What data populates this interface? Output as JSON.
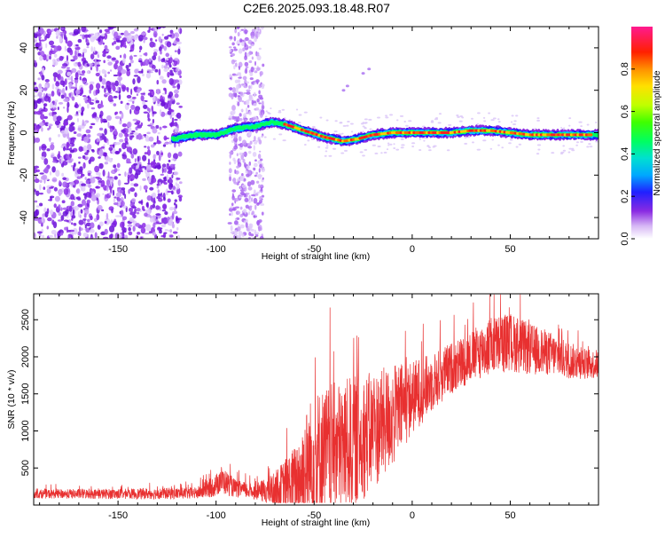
{
  "title": "C2E6.2025.093.18.48.R07",
  "chart_data": [
    {
      "type": "heatmap",
      "name": "spectrogram",
      "xlabel": "Height of straight line (km)",
      "ylabel": "Frequency (Hz)",
      "xlim": [
        -193,
        95
      ],
      "ylim": [
        -50,
        50
      ],
      "xticks": [
        -150,
        -100,
        -50,
        0,
        50
      ],
      "xtick_labels": [
        "-150",
        "-100",
        "-50",
        "0",
        "50"
      ],
      "yticks": [
        -40,
        -20,
        0,
        20,
        40
      ],
      "ytick_labels": [
        "-40",
        "-20",
        "0",
        "20",
        "40"
      ],
      "ridge": {
        "description_values": "dominant frequency (Hz) along height (km)",
        "x": [
          -122,
          -110,
          -100,
          -90,
          -80,
          -72,
          -65,
          -55,
          -45,
          -35,
          -28,
          -20,
          -10,
          0,
          10,
          20,
          30,
          40,
          50,
          60,
          70,
          80,
          90,
          95
        ],
        "y": [
          -3,
          -1,
          -1,
          2,
          3,
          5,
          4,
          1,
          -2,
          -4,
          -3,
          -1,
          0,
          0,
          0,
          0,
          1,
          1,
          0,
          -1,
          -1,
          -1,
          -1,
          -1
        ]
      },
      "colorbar": {
        "label": "Normalized spectral amplitude",
        "range": [
          0.0,
          1.0
        ],
        "ticks": [
          0.0,
          0.2,
          0.4,
          0.6,
          0.8
        ],
        "tick_labels": [
          "0.0",
          "0.2",
          "0.4",
          "0.6",
          "0.8"
        ]
      }
    },
    {
      "type": "line",
      "name": "snr",
      "xlabel": "Height of straight line (km)",
      "ylabel": "SNR (10 * v/v)",
      "xlim": [
        -193,
        95
      ],
      "ylim": [
        0,
        2850
      ],
      "xticks": [
        -150,
        -100,
        -50,
        0,
        50
      ],
      "xtick_labels": [
        "-150",
        "-100",
        "-50",
        "0",
        "50"
      ],
      "yticks": [
        500,
        1000,
        1500,
        2000,
        2500
      ],
      "ytick_labels": [
        "500",
        "1000",
        "1500",
        "2000",
        "2500"
      ],
      "color": "#e83030",
      "envelope": {
        "x": [
          -193,
          -150,
          -110,
          -100,
          -98,
          -90,
          -80,
          -70,
          -60,
          -55,
          -50,
          -40,
          -30,
          -20,
          -10,
          0,
          10,
          20,
          30,
          40,
          50,
          60,
          70,
          80,
          90,
          95
        ],
        "base": [
          150,
          150,
          160,
          260,
          350,
          220,
          180,
          200,
          300,
          450,
          650,
          750,
          850,
          1000,
          1200,
          1450,
          1650,
          1850,
          2000,
          2150,
          2200,
          2100,
          2050,
          1950,
          1900,
          1900
        ],
        "amplitude": [
          60,
          70,
          80,
          150,
          200,
          120,
          100,
          250,
          500,
          800,
          900,
          900,
          900,
          800,
          700,
          500,
          400,
          350,
          350,
          400,
          400,
          350,
          300,
          250,
          200,
          200
        ]
      }
    }
  ]
}
